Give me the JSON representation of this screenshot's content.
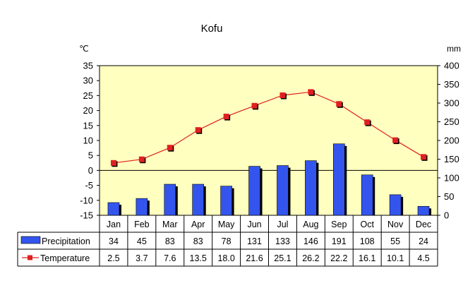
{
  "chart_data": {
    "type": "bar+line",
    "title": "Kofu",
    "categories": [
      "Jan",
      "Feb",
      "Mar",
      "Apr",
      "May",
      "Jun",
      "Jul",
      "Aug",
      "Sep",
      "Oct",
      "Nov",
      "Dec"
    ],
    "left_axis": {
      "unit": "℃",
      "ylim": [
        -15,
        35
      ],
      "ticks": [
        35,
        30,
        25,
        20,
        15,
        10,
        5,
        0,
        -5,
        -10,
        -15
      ]
    },
    "right_axis": {
      "unit": "mm",
      "ylim": [
        0,
        400
      ],
      "ticks": [
        400,
        350,
        300,
        250,
        200,
        150,
        100,
        50,
        0
      ]
    },
    "series": [
      {
        "name": "Precipitation",
        "kind": "bar",
        "axis": "right",
        "color": "#3355ee",
        "values": [
          34,
          45,
          83,
          83,
          78,
          131,
          133,
          146,
          191,
          108,
          55,
          24
        ],
        "labels": [
          "34",
          "45",
          "83",
          "83",
          "78",
          "131",
          "133",
          "146",
          "191",
          "108",
          "55",
          "24"
        ]
      },
      {
        "name": "Temperature",
        "kind": "line",
        "axis": "left",
        "color": "#e02020",
        "values": [
          2.5,
          3.7,
          7.6,
          13.5,
          18.0,
          21.6,
          25.1,
          26.2,
          22.2,
          16.1,
          10.1,
          4.5
        ],
        "labels": [
          "2.5",
          "3.7",
          "7.6",
          "13.5",
          "18.0",
          "21.6",
          "25.1",
          "26.2",
          "22.2",
          "16.1",
          "10.1",
          "4.5"
        ]
      }
    ],
    "plot_background": "#ffffc0",
    "grid": false,
    "legend": "table-below"
  }
}
